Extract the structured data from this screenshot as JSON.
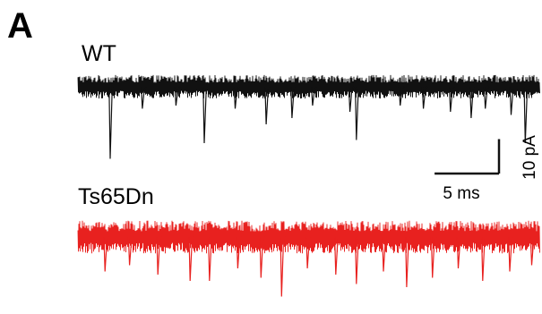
{
  "panel": {
    "letter": "A"
  },
  "chart_data": {
    "type": "line",
    "title": "",
    "xlabel": "",
    "ylabel": "",
    "series": [
      {
        "name": "WT",
        "color": "#111111",
        "baseline_band_pA": [
          -2.5,
          2.5
        ],
        "events": [
          {
            "t_ms": 2.5,
            "amp_pA": -11.5
          },
          {
            "t_ms": 9.8,
            "amp_pA": -9.0
          },
          {
            "t_ms": 14.6,
            "amp_pA": -6.0
          },
          {
            "t_ms": 21.6,
            "amp_pA": -8.5
          },
          {
            "t_ms": 30.5,
            "amp_pA": -5.0
          },
          {
            "t_ms": 33.6,
            "amp_pA": -4.5
          },
          {
            "t_ms": 28.9,
            "amp_pA": -4.0
          },
          {
            "t_ms": 21.1,
            "amp_pA": -4.0
          },
          {
            "t_ms": 16.6,
            "amp_pA": -5.0
          },
          {
            "t_ms": 12.2,
            "amp_pA": -3.5
          },
          {
            "t_ms": 5.0,
            "amp_pA": -3.5
          },
          {
            "t_ms": 7.6,
            "amp_pA": -3.0
          },
          {
            "t_ms": 18.2,
            "amp_pA": -3.0
          },
          {
            "t_ms": 25.0,
            "amp_pA": -3.0
          },
          {
            "t_ms": 26.8,
            "amp_pA": -3.5
          },
          {
            "t_ms": 31.6,
            "amp_pA": -3.5
          },
          {
            "t_ms": 34.7,
            "amp_pA": -9.0
          }
        ]
      },
      {
        "name": "Ts65Dn",
        "color": "#e8211f",
        "baseline_band_pA": [
          -3.5,
          3.5
        ],
        "events": [
          {
            "t_ms": 2.1,
            "amp_pA": -5.5
          },
          {
            "t_ms": 4.0,
            "amp_pA": -4.5
          },
          {
            "t_ms": 6.2,
            "amp_pA": -6.0
          },
          {
            "t_ms": 8.7,
            "amp_pA": -7.0
          },
          {
            "t_ms": 10.2,
            "amp_pA": -7.0
          },
          {
            "t_ms": 12.4,
            "amp_pA": -5.0
          },
          {
            "t_ms": 14.2,
            "amp_pA": -6.5
          },
          {
            "t_ms": 15.8,
            "amp_pA": -9.5
          },
          {
            "t_ms": 17.8,
            "amp_pA": -5.0
          },
          {
            "t_ms": 20.0,
            "amp_pA": -6.0
          },
          {
            "t_ms": 21.6,
            "amp_pA": -7.5
          },
          {
            "t_ms": 23.7,
            "amp_pA": -5.5
          },
          {
            "t_ms": 25.5,
            "amp_pA": -8.0
          },
          {
            "t_ms": 27.5,
            "amp_pA": -6.5
          },
          {
            "t_ms": 29.5,
            "amp_pA": -5.0
          },
          {
            "t_ms": 31.4,
            "amp_pA": -7.0
          },
          {
            "t_ms": 33.5,
            "amp_pA": -5.5
          },
          {
            "t_ms": 35.2,
            "amp_pA": -4.5
          }
        ]
      }
    ],
    "x_range_ms": [
      0,
      36
    ],
    "grid": false,
    "legend": "none",
    "scale_bar": {
      "time_ms": 5,
      "time_label": "5 ms",
      "current_pA": 10,
      "current_label": "10 pA"
    }
  }
}
